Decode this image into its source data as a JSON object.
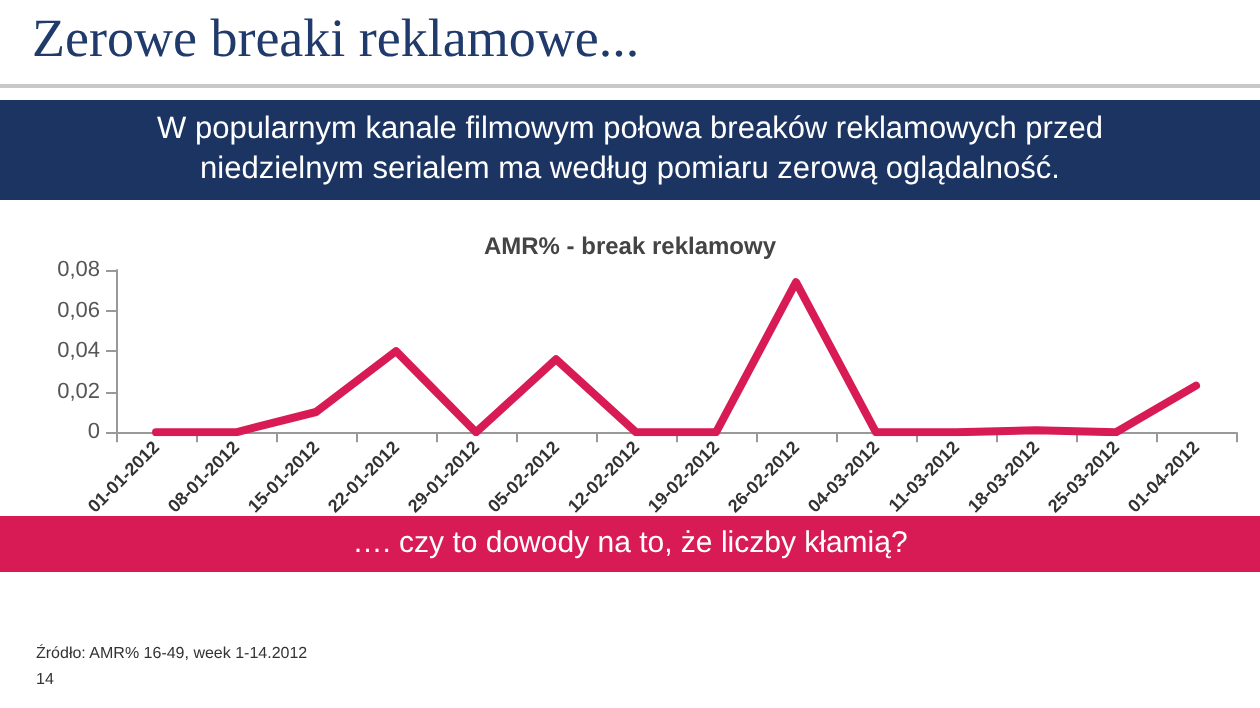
{
  "chart_data": {
    "type": "line",
    "title": "AMR% - break reklamowy",
    "subtitle": "W popularnym kanale filmowym połowa breaków reklamowych przed niedzielnym serialem ma według pomiaru zerową oglądalność.",
    "annotations": [
      "Zerowe breaki reklamowe...",
      "…. czy to dowody na to, że liczby kłamią?",
      "Źródło: AMR% 16-49, week 1-14.2012",
      "14"
    ],
    "categories": [
      "01-01-2012",
      "08-01-2012",
      "15-01-2012",
      "22-01-2012",
      "29-01-2012",
      "05-02-2012",
      "12-02-2012",
      "19-02-2012",
      "26-02-2012",
      "04-03-2012",
      "11-03-2012",
      "18-03-2012",
      "25-03-2012",
      "01-04-2012"
    ],
    "series": [
      {
        "color": "#d81b55",
        "values": [
          0,
          0,
          0.01,
          0.04,
          0,
          0.036,
          0,
          0,
          0.074,
          0,
          0,
          0.001,
          0,
          0.023
        ]
      }
    ],
    "ylim": [
      0,
      0.08
    ],
    "yticks": [
      {
        "value": 0,
        "label": "0"
      },
      {
        "value": 0.02,
        "label": "0,02"
      },
      {
        "value": 0.04,
        "label": "0,04"
      },
      {
        "value": 0.06,
        "label": "0,06"
      },
      {
        "value": 0.08,
        "label": "0,08"
      }
    ],
    "grid": false,
    "marker": "none",
    "line_style": "solid"
  }
}
